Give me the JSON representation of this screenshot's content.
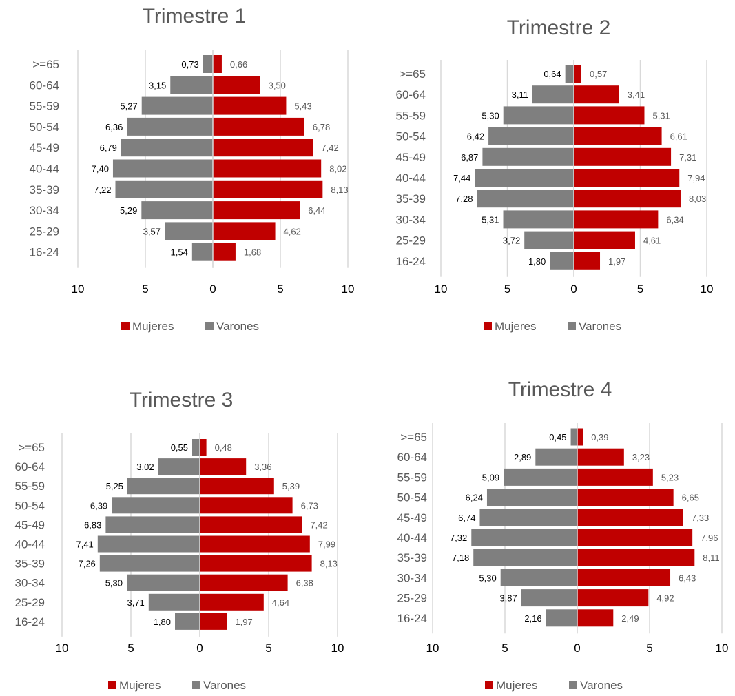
{
  "colors": {
    "mujeres": "#c00000",
    "varones": "#7f7f7f",
    "grid": "#d9d9d9",
    "title": "#595959"
  },
  "chart_data": [
    {
      "type": "bar",
      "orientation": "horizontal-pyramid",
      "title": "Trimestre 1",
      "categories": [
        "16-24",
        "25-29",
        "30-34",
        "35-39",
        "40-44",
        "45-49",
        "50-54",
        "55-59",
        "60-64",
        ">=65"
      ],
      "series": [
        {
          "name": "Mujeres",
          "values": [
            1.68,
            4.62,
            6.44,
            8.13,
            8.02,
            7.42,
            6.78,
            5.43,
            3.5,
            0.66
          ],
          "labels": [
            "1,68",
            "4,62",
            "6,44",
            "8,13",
            "8,02",
            "7,42",
            "6,78",
            "5,43",
            "3,50",
            "0,66"
          ]
        },
        {
          "name": "Varones",
          "values": [
            1.54,
            3.57,
            5.29,
            7.22,
            7.4,
            6.79,
            6.36,
            5.27,
            3.15,
            0.73
          ],
          "labels": [
            "1,54",
            "3,57",
            "5,29",
            "7,22",
            "7,40",
            "6,79",
            "6,36",
            "5,27",
            "3,15",
            "0,73"
          ]
        }
      ],
      "xticks": [
        "10",
        "5",
        "0",
        "5",
        "10"
      ],
      "xlim": [
        -10,
        10
      ],
      "grid": true,
      "legend": "bottom"
    },
    {
      "type": "bar",
      "orientation": "horizontal-pyramid",
      "title": "Trimestre 2",
      "categories": [
        "16-24",
        "25-29",
        "30-34",
        "35-39",
        "40-44",
        "45-49",
        "50-54",
        "55-59",
        "60-64",
        ">=65"
      ],
      "series": [
        {
          "name": "Mujeres",
          "values": [
            1.97,
            4.61,
            6.34,
            8.03,
            7.94,
            7.31,
            6.61,
            5.31,
            3.41,
            0.57
          ],
          "labels": [
            "1,97",
            "4,61",
            "6,34",
            "8,03",
            "7,94",
            "7,31",
            "6,61",
            "5,31",
            "3,41",
            "0,57"
          ]
        },
        {
          "name": "Varones",
          "values": [
            1.8,
            3.72,
            5.31,
            7.28,
            7.44,
            6.87,
            6.42,
            5.3,
            3.11,
            0.64
          ],
          "labels": [
            "1,80",
            "3,72",
            "5,31",
            "7,28",
            "7,44",
            "6,87",
            "6,42",
            "5,30",
            "3,11",
            "0,64"
          ]
        }
      ],
      "xticks": [
        "10",
        "5",
        "0",
        "5",
        "10"
      ],
      "xlim": [
        -10,
        10
      ],
      "grid": true,
      "legend": "bottom"
    },
    {
      "type": "bar",
      "orientation": "horizontal-pyramid",
      "title": "Trimestre 3",
      "categories": [
        "16-24",
        "25-29",
        "30-34",
        "35-39",
        "40-44",
        "45-49",
        "50-54",
        "55-59",
        "60-64",
        ">=65"
      ],
      "series": [
        {
          "name": "Mujeres",
          "values": [
            1.97,
            4.64,
            6.38,
            8.13,
            7.99,
            7.42,
            6.73,
            5.39,
            3.36,
            0.48
          ],
          "labels": [
            "1,97",
            "4,64",
            "6,38",
            "8,13",
            "7,99",
            "7,42",
            "6,73",
            "5,39",
            "3,36",
            "0,48"
          ]
        },
        {
          "name": "Varones",
          "values": [
            1.8,
            3.71,
            5.3,
            7.26,
            7.41,
            6.83,
            6.39,
            5.25,
            3.02,
            0.55
          ],
          "labels": [
            "1,80",
            "3,71",
            "5,30",
            "7,26",
            "7,41",
            "6,83",
            "6,39",
            "5,25",
            "3,02",
            "0,55"
          ]
        }
      ],
      "xticks": [
        "10",
        "5",
        "0",
        "5",
        "10"
      ],
      "xlim": [
        -10,
        10
      ],
      "grid": true,
      "legend": "bottom"
    },
    {
      "type": "bar",
      "orientation": "horizontal-pyramid",
      "title": "Trimestre 4",
      "categories": [
        "16-24",
        "25-29",
        "30-34",
        "35-39",
        "40-44",
        "45-49",
        "50-54",
        "55-59",
        "60-64",
        ">=65"
      ],
      "series": [
        {
          "name": "Mujeres",
          "values": [
            2.49,
            4.92,
            6.43,
            8.11,
            7.96,
            7.33,
            6.65,
            5.23,
            3.23,
            0.39
          ],
          "labels": [
            "2,49",
            "4,92",
            "6,43",
            "8,11",
            "7,96",
            "7,33",
            "6,65",
            "5,23",
            "3,23",
            "0,39"
          ]
        },
        {
          "name": "Varones",
          "values": [
            2.16,
            3.87,
            5.3,
            7.18,
            7.32,
            6.74,
            6.24,
            5.09,
            2.89,
            0.45
          ],
          "labels": [
            "2,16",
            "3,87",
            "5,30",
            "7,18",
            "7,32",
            "6,74",
            "6,24",
            "5,09",
            "2,89",
            "0,45"
          ]
        }
      ],
      "xticks": [
        "10",
        "5",
        "0",
        "5",
        "10"
      ],
      "xlim": [
        -10,
        10
      ],
      "grid": true,
      "legend": "bottom"
    }
  ]
}
